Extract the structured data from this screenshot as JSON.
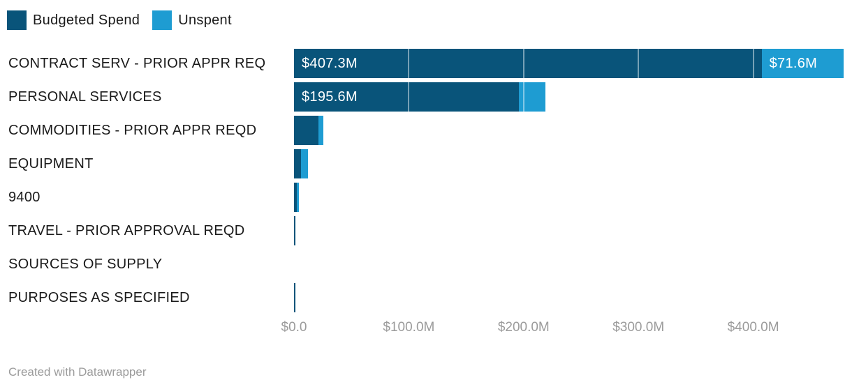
{
  "legend": {
    "items": [
      {
        "id": "budgeted",
        "label": "Budgeted Spend",
        "color": "#09547A"
      },
      {
        "id": "unspent",
        "label": "Unspent",
        "color": "#1E9CD2"
      }
    ]
  },
  "chart_data": {
    "type": "bar",
    "orientation": "horizontal",
    "stacked": true,
    "title": "",
    "xlabel": "",
    "ylabel": "",
    "categories": [
      "CONTRACT SERV - PRIOR APPR REQ",
      "PERSONAL SERVICES",
      "COMMODITIES - PRIOR APPR REQD",
      "EQUIPMENT",
      "9400",
      "TRAVEL - PRIOR APPROVAL REQD",
      "SOURCES OF SUPPLY",
      "PURPOSES AS SPECIFIED"
    ],
    "series": [
      {
        "name": "Budgeted Spend",
        "color": "#09547A",
        "values": [
          407.3,
          195.6,
          21.3,
          6.0,
          2.2,
          1.2,
          0,
          0.9
        ]
      },
      {
        "name": "Unspent",
        "color": "#1E9CD2",
        "values": [
          71.6,
          23.4,
          4.4,
          6.0,
          2.0,
          0,
          0,
          0
        ]
      }
    ],
    "bar_labels": [
      {
        "budgeted": "$407.3M",
        "unspent": "$71.6M"
      },
      {
        "budgeted": "$195.6M",
        "unspent": ""
      },
      {
        "budgeted": "",
        "unspent": ""
      },
      {
        "budgeted": "",
        "unspent": ""
      },
      {
        "budgeted": "",
        "unspent": ""
      },
      {
        "budgeted": "",
        "unspent": ""
      },
      {
        "budgeted": "",
        "unspent": ""
      },
      {
        "budgeted": "",
        "unspent": ""
      }
    ],
    "x_axis": {
      "ticks": [
        {
          "value": 0,
          "label": "$0.0"
        },
        {
          "value": 100,
          "label": "$100.0M"
        },
        {
          "value": 200,
          "label": "$200.0M"
        },
        {
          "value": 300,
          "label": "$300.0M"
        },
        {
          "value": 400,
          "label": "$400.0M"
        }
      ],
      "max": 480,
      "unit": "M USD"
    },
    "grid": "vertical-over-bars",
    "gridline_color": "rgba(255,255,255,0.45)",
    "legend_position": "top-left"
  },
  "footer": {
    "credit": "Created with Datawrapper"
  }
}
